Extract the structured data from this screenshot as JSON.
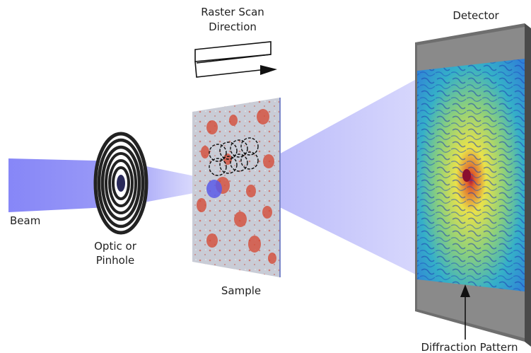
{
  "labels": {
    "raster_line1": "Raster Scan",
    "raster_line2": "Direction",
    "detector": "Detector",
    "beam": "Beam",
    "optic_line1": "Optic or",
    "optic_line2": "Pinhole",
    "sample": "Sample",
    "diffraction": "Diffraction Pattern"
  },
  "colors": {
    "beam": "#7f7ff5",
    "detector_frame": "#6e6e6e",
    "sample_base": "#c9ccd6",
    "sample_feature": "#d6452f",
    "pattern_low": "#2f7fd8",
    "pattern_high": "#e9e24a",
    "pattern_peak": "#b0123a"
  }
}
